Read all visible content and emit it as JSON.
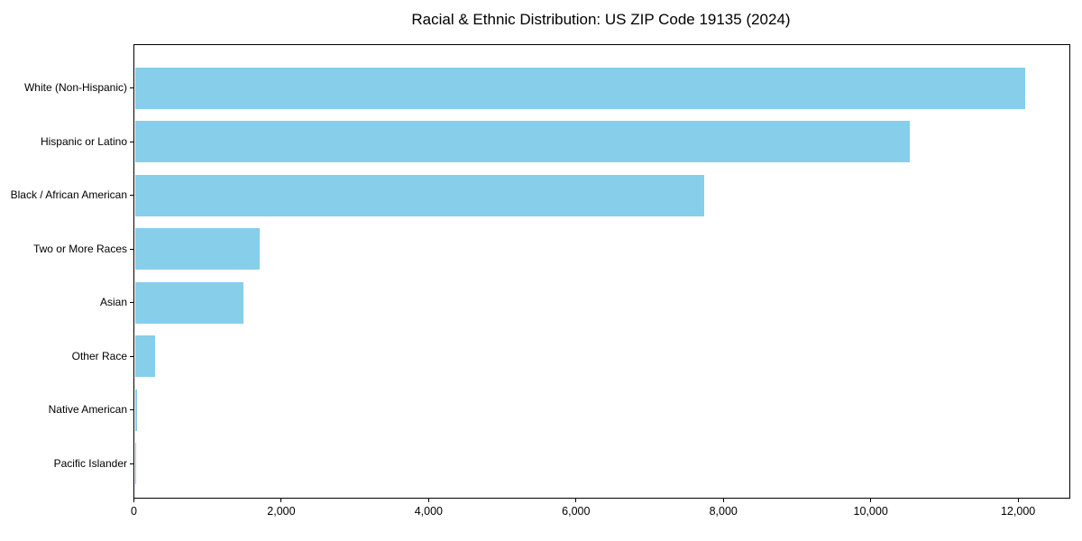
{
  "chart_data": {
    "type": "bar",
    "orientation": "horizontal",
    "title": "Racial & Ethnic Distribution: US ZIP Code 19135 (2024)",
    "categories": [
      "White (Non-Hispanic)",
      "Hispanic or Latino",
      "Black / African American",
      "Two or More Races",
      "Asian",
      "Other Race",
      "Native American",
      "Pacific Islander"
    ],
    "values": [
      12080,
      10520,
      7730,
      1700,
      1470,
      280,
      25,
      5
    ],
    "xlabel": "",
    "ylabel": "",
    "xlim": [
      0,
      12690
    ],
    "xticks": [
      0,
      2000,
      4000,
      6000,
      8000,
      10000,
      12000
    ],
    "xtick_labels": [
      "0",
      "2,000",
      "4,000",
      "6,000",
      "8,000",
      "10,000",
      "12,000"
    ],
    "bar_color": "#87CEEB",
    "axis_color": "#000000",
    "background_color": "#ffffff",
    "grid": false,
    "legend": null
  }
}
